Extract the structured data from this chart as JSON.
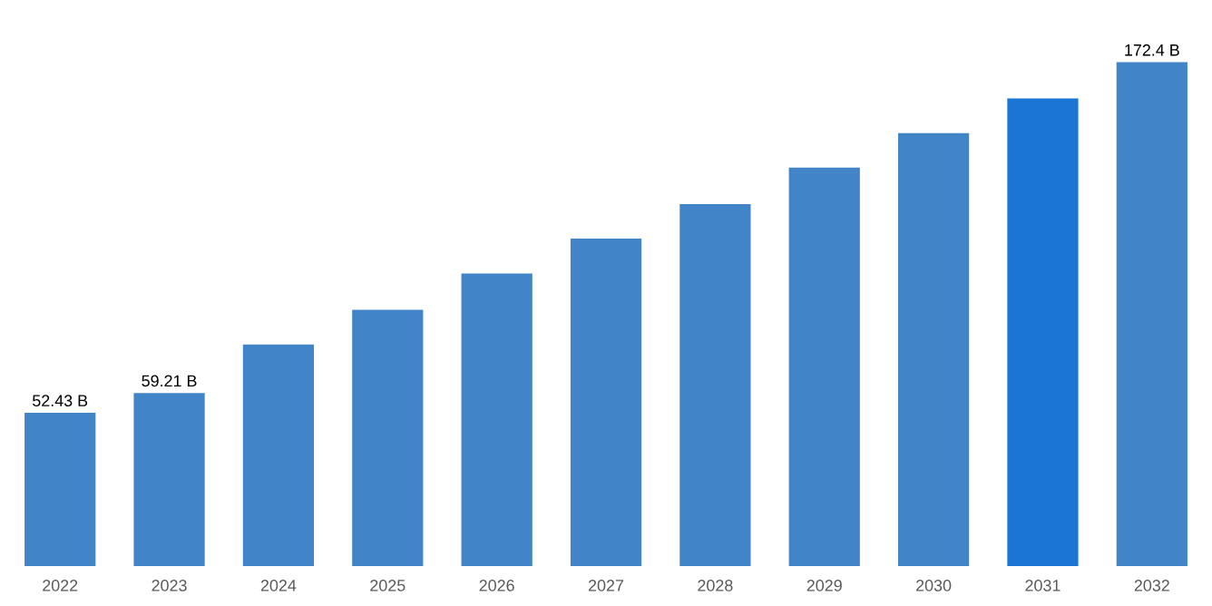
{
  "chart_data": {
    "type": "bar",
    "categories": [
      "2022",
      "2023",
      "2024",
      "2025",
      "2026",
      "2027",
      "2028",
      "2029",
      "2030",
      "2031",
      "2032"
    ],
    "values": [
      52.43,
      59.21,
      75.8,
      87.7,
      100.1,
      112,
      123.8,
      136.3,
      148.1,
      160,
      172.4
    ],
    "value_labels": [
      "52.43 B",
      "59.21 B",
      null,
      null,
      null,
      null,
      null,
      null,
      null,
      null,
      "172.4 B"
    ],
    "colors": [
      "#4284c8",
      "#4284c8",
      "#4284c8",
      "#4284c8",
      "#4284c8",
      "#4284c8",
      "#4284c8",
      "#4284c8",
      "#4284c8",
      "#1a75d5",
      "#4284c8"
    ]
  }
}
